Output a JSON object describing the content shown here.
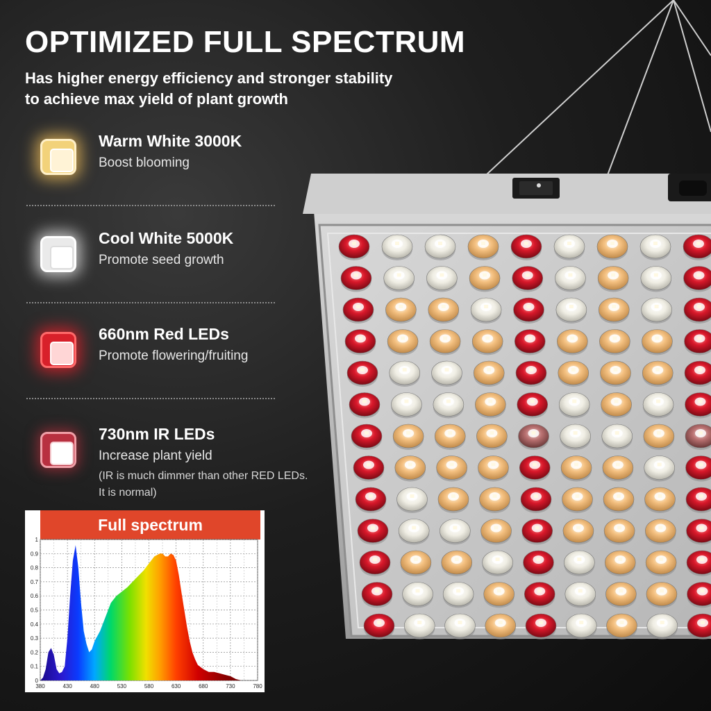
{
  "header": {
    "title": "OPTIMIZED FULL SPECTRUM",
    "subtitle_line1": "Has higher energy efficiency and stronger stability",
    "subtitle_line2": "to achieve max yield of plant growth"
  },
  "features": [
    {
      "name": "Warm White 3000K",
      "desc": "Boost blooming",
      "color": "#f6c25a"
    },
    {
      "name": "Cool White 5000K",
      "desc": "Promote seed growth",
      "color": "#ffffff"
    },
    {
      "name": "660nm Red LEDs",
      "desc": "Promote flowering/fruiting",
      "color": "#e0202a"
    },
    {
      "name": "730nm IR LEDs",
      "desc": "Increase plant yield",
      "note_line1": "(IR is much dimmer than other RED LEDs.",
      "note_line2": "It is normal)",
      "color": "#c83040"
    }
  ],
  "chart_data": {
    "type": "area",
    "title": "Full spectrum",
    "xlabel": "",
    "ylabel": "",
    "x_ticks": [
      380,
      430,
      480,
      530,
      580,
      630,
      680,
      730,
      780
    ],
    "y_ticks": [
      0,
      0.1,
      0.2,
      0.3,
      0.4,
      0.5,
      0.6,
      0.7,
      0.8,
      0.9,
      1
    ],
    "xlim": [
      380,
      780
    ],
    "ylim": [
      0,
      1
    ],
    "grid": true,
    "series": [
      {
        "x": [
          380,
          385,
          390,
          395,
          400,
          405,
          410,
          415,
          420,
          425,
          430,
          435,
          440,
          445,
          450,
          455,
          460,
          465,
          470,
          475,
          480,
          490,
          500,
          510,
          520,
          530,
          540,
          550,
          560,
          570,
          580,
          590,
          600,
          605,
          610,
          615,
          620,
          625,
          630,
          635,
          640,
          645,
          650,
          655,
          660,
          665,
          670,
          680,
          690,
          700,
          710,
          720,
          730,
          740,
          750
        ],
        "y": [
          0,
          0.02,
          0.08,
          0.2,
          0.23,
          0.18,
          0.08,
          0.05,
          0.06,
          0.1,
          0.3,
          0.6,
          0.85,
          0.96,
          0.8,
          0.55,
          0.35,
          0.26,
          0.2,
          0.22,
          0.28,
          0.35,
          0.45,
          0.55,
          0.6,
          0.63,
          0.66,
          0.7,
          0.74,
          0.78,
          0.83,
          0.88,
          0.9,
          0.9,
          0.88,
          0.88,
          0.9,
          0.89,
          0.85,
          0.75,
          0.62,
          0.5,
          0.38,
          0.28,
          0.2,
          0.15,
          0.11,
          0.08,
          0.06,
          0.06,
          0.05,
          0.04,
          0.03,
          0.01,
          0
        ]
      }
    ]
  },
  "colors": {
    "header_bar": "#e0462a",
    "red_led": "#d8182a",
    "warm_led": "#f4c080",
    "cool_led": "#f4f2ea",
    "ir_led": "#c07878"
  },
  "panel": {
    "led_grid": [
      "RCCWRCWCR",
      "RCCWRCWCR",
      "RWWCRCWCR",
      "RWWWRWWWR",
      "RCCWRWWWR",
      "RCCWRCWCR",
      "RWWWICCWI",
      "RWWWRWWCR",
      "RCWWRWWWR",
      "RCCWRWWWR",
      "RWWCRCWWR",
      "RCCWRCWWR",
      "RCCWRCWCR"
    ]
  }
}
